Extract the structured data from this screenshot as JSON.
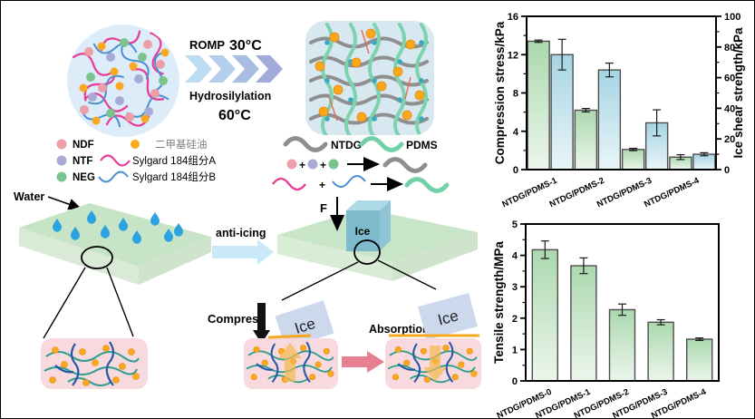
{
  "colors": {
    "ndf": "#ec9fa7",
    "ntf": "#a9aad6",
    "neg": "#7cc48e",
    "silicone_oil": "#f9a820",
    "sylgard_a": "#e83e96",
    "sylgard_b": "#4a8fd4",
    "ntdg": "#8f8f8f",
    "pdms": "#72d1a8",
    "bar_green_top": "#abd8ae",
    "bar_green_bottom": "#ecf6ec",
    "bar_blue_top": "#a6d4e3",
    "bar_blue_bottom": "#e9f6f9",
    "anti_icing_arrow": "#c9e9f8",
    "absorb_arrow": "#e87f90",
    "network_box": "#f8d9de",
    "ice_tile": "#ccd8ec"
  },
  "schematic": {
    "romp_label": "ROMP",
    "romp_temp": "30°C",
    "hydro_label": "Hydrosilylation",
    "hydro_temp": "60°C",
    "water_label": "Water",
    "anti_icing_label": "anti-icing",
    "force_label": "F",
    "ice_label": "Ice",
    "compress_label": "Compress",
    "absorption_label": "Absorption",
    "legend": {
      "ndf": "NDF",
      "ntf": "NTF",
      "neg": "NEG",
      "silicone_oil": "二甲基硅油",
      "sylgard_a": "Sylgard 184组分A",
      "sylgard_b": "Sylgard 184组分B",
      "ntdg": "NTDG",
      "pdms": "PDMS",
      "plus": "+"
    }
  },
  "chart_data": [
    {
      "type": "bar",
      "title": "",
      "grid": false,
      "legend_position": "none",
      "categories": [
        "NTDG/PDMS-1",
        "NTDG/PDMS-2",
        "NTDG/PDMS-3",
        "NTDG/PDMS-4"
      ],
      "axes": {
        "left": {
          "label": "Compression stress/kPa",
          "lim": [
            0,
            16
          ],
          "ticks": [
            0,
            4,
            8,
            12,
            16
          ],
          "minor": 2
        },
        "right": {
          "label": "Ice shear strength/kPa",
          "lim": [
            0,
            100
          ],
          "ticks": [
            0,
            20,
            40,
            60,
            80,
            100
          ],
          "minor": 10
        }
      },
      "series": [
        {
          "name": "Compression stress",
          "axis": "left",
          "color_top": "#abd8ae",
          "color_bottom": "#ecf6ec",
          "values": [
            13.4,
            6.2,
            2.1,
            1.3
          ],
          "errors": [
            0.12,
            0.18,
            0.12,
            0.25
          ]
        },
        {
          "name": "Ice shear strength",
          "axis": "right",
          "color_top": "#a6d4e3",
          "color_bottom": "#e9f6f9",
          "values": [
            75,
            65,
            30.5,
            10
          ],
          "errors": [
            10,
            4.5,
            8.5,
            1
          ]
        }
      ]
    },
    {
      "type": "bar",
      "title": "",
      "grid": false,
      "legend_position": "none",
      "categories": [
        "NTDG/PDMS-0",
        "NTDG/PDMS-1",
        "NTDG/PDMS-2",
        "NTDG/PDMS-3",
        "NTDG/PDMS-4"
      ],
      "axes": {
        "left": {
          "label": "Tensile strength/MPa",
          "lim": [
            0,
            5
          ],
          "ticks": [
            0,
            1,
            2,
            3,
            4,
            5
          ],
          "minor": 0.5
        }
      },
      "series": [
        {
          "name": "Tensile strength",
          "axis": "left",
          "color_top": "#abd8ae",
          "color_bottom": "#ecf6ec",
          "values": [
            4.18,
            3.67,
            2.27,
            1.87,
            1.33
          ],
          "errors": [
            0.28,
            0.25,
            0.18,
            0.08,
            0.04
          ]
        }
      ]
    }
  ]
}
